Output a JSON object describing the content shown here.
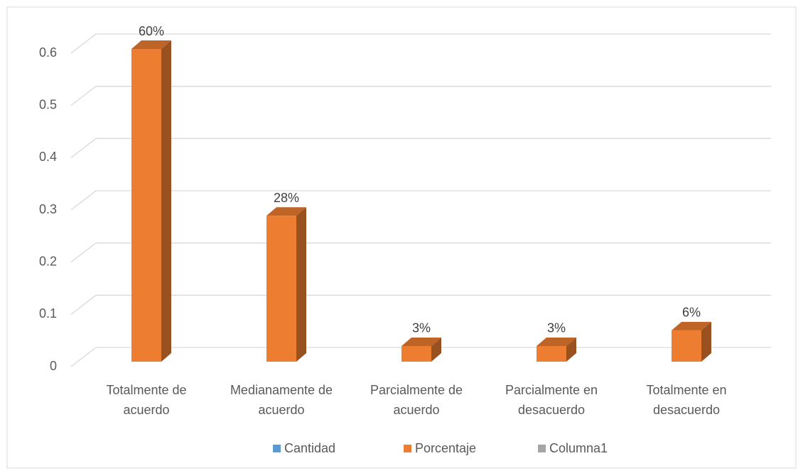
{
  "chart_data": {
    "type": "bar3d",
    "categories": [
      "Totalmente de acuerdo",
      "Medianamente de acuerdo",
      "Parcialmente de acuerdo",
      "Parcialmente en desacuerdo",
      "Totalmente en desacuerdo"
    ],
    "series": [
      {
        "name": "Cantidad",
        "color": "#5b9bd5",
        "values": [
          null,
          null,
          null,
          null,
          null
        ]
      },
      {
        "name": "Porcentaje",
        "color": "#ed7d31",
        "values": [
          0.6,
          0.28,
          0.03,
          0.03,
          0.06
        ],
        "value_labels": [
          "60%",
          "28%",
          "3%",
          "3%",
          "6%"
        ]
      },
      {
        "name": "Columna1",
        "color": "#a5a5a5",
        "values": [
          null,
          null,
          null,
          null,
          null
        ]
      }
    ],
    "ylim": [
      0,
      0.6
    ],
    "yticks": [
      0,
      0.1,
      0.2,
      0.3,
      0.4,
      0.5,
      0.6
    ],
    "grid": true,
    "legend": "bottom"
  }
}
